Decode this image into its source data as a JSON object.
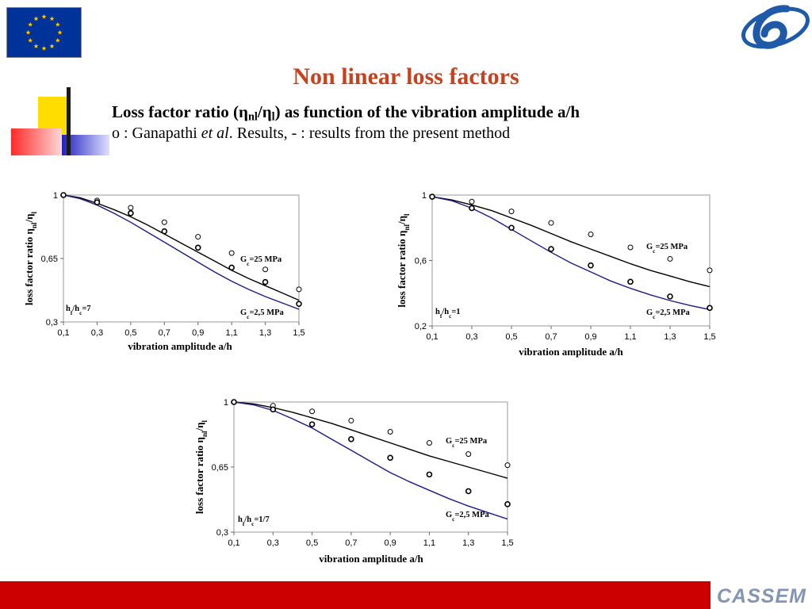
{
  "header": {
    "title": "Non linear loss factors",
    "subtitle": {
      "prefix": "Loss factor ratio (",
      "eta1": "η",
      "sub1": "nl",
      "slash": "/",
      "eta2": "η",
      "sub2": "l",
      "suffix": ") as function of the vibration amplitude a/h"
    },
    "caption": {
      "text1": "o : Ganapathi ",
      "italic": "et al",
      "text2": ". Results, - : results from the present method"
    }
  },
  "footer": {
    "logo_text": "CASSEM"
  },
  "colors": {
    "title": "#c8401c",
    "line_25": "#000000",
    "line_2_5": "#1a1a8c",
    "footer_bar": "#cc0000"
  },
  "chart_data": [
    {
      "type": "line",
      "xlabel": "vibration amplitude a/h",
      "ylabel": {
        "prefix": "loss factor ratio ",
        "eta1": "η",
        "sub1": "nl",
        "slash": "/",
        "eta2": "η",
        "sub2": "l"
      },
      "x_ticks": [
        "0,1",
        "0,3",
        "0,5",
        "0,7",
        "0,9",
        "1,1",
        "1,3",
        "1,5"
      ],
      "y_ticks": [
        "0,3",
        "0,65",
        "1"
      ],
      "xlim": [
        0.1,
        1.5
      ],
      "ylim": [
        0.3,
        1.0
      ],
      "annotation": {
        "h": "h",
        "f": "f",
        "slash": "/h",
        "c": "c",
        "ratio": "=7"
      },
      "series": [
        {
          "name": {
            "g": "G",
            "c": "c",
            "val": "=25 MPa"
          },
          "line": {
            "x": [
              0.1,
              0.2,
              0.3,
              0.4,
              0.5,
              0.6,
              0.7,
              0.8,
              0.9,
              1.0,
              1.1,
              1.2,
              1.3,
              1.4,
              1.5
            ],
            "y": [
              1.0,
              0.985,
              0.955,
              0.92,
              0.88,
              0.835,
              0.785,
              0.735,
              0.685,
              0.635,
              0.585,
              0.54,
              0.5,
              0.46,
              0.42
            ]
          },
          "points": {
            "x": [
              0.1,
              0.3,
              0.5,
              0.7,
              0.9,
              1.1,
              1.3,
              1.5
            ],
            "y": [
              1.0,
              0.97,
              0.93,
              0.85,
              0.77,
              0.68,
              0.59,
              0.48
            ]
          }
        },
        {
          "name": {
            "g": "G",
            "c": "c",
            "val": "=2,5 MPa"
          },
          "line": {
            "x": [
              0.1,
              0.2,
              0.3,
              0.4,
              0.5,
              0.6,
              0.7,
              0.8,
              0.9,
              1.0,
              1.1,
              1.2,
              1.3,
              1.4,
              1.5
            ],
            "y": [
              1.0,
              0.98,
              0.945,
              0.9,
              0.85,
              0.795,
              0.74,
              0.685,
              0.63,
              0.575,
              0.525,
              0.48,
              0.44,
              0.405,
              0.37
            ]
          },
          "points": {
            "x": [
              0.1,
              0.3,
              0.5,
              0.7,
              0.9,
              1.1,
              1.3,
              1.5
            ],
            "y": [
              1.0,
              0.96,
              0.9,
              0.8,
              0.71,
              0.6,
              0.52,
              0.4
            ]
          }
        }
      ]
    },
    {
      "type": "line",
      "xlabel": "vibration amplitude a/h",
      "ylabel": {
        "prefix": "loss factor ratio ",
        "eta1": "η",
        "sub1": "nl",
        "slash": "/",
        "eta2": "η",
        "sub2": "l"
      },
      "x_ticks": [
        "0,1",
        "0,3",
        "0,5",
        "0,7",
        "0,9",
        "1,1",
        "1,3",
        "1,5"
      ],
      "y_ticks": [
        "0,2",
        "0,6",
        "1"
      ],
      "xlim": [
        0.1,
        1.5
      ],
      "ylim": [
        0.2,
        1.0
      ],
      "annotation": {
        "h": "h",
        "f": "f",
        "slash": "/h",
        "c": "c",
        "ratio": "=1"
      },
      "series": [
        {
          "name": {
            "g": "G",
            "c": "c",
            "val": "=25 MPa"
          },
          "line": {
            "x": [
              0.1,
              0.2,
              0.3,
              0.4,
              0.5,
              0.6,
              0.7,
              0.8,
              0.9,
              1.0,
              1.1,
              1.2,
              1.3,
              1.4,
              1.5
            ],
            "y": [
              0.99,
              0.97,
              0.94,
              0.905,
              0.86,
              0.815,
              0.765,
              0.715,
              0.67,
              0.625,
              0.58,
              0.54,
              0.505,
              0.47,
              0.44
            ]
          },
          "points": {
            "x": [
              0.1,
              0.3,
              0.5,
              0.7,
              0.9,
              1.1,
              1.3,
              1.5
            ],
            "y": [
              0.99,
              0.96,
              0.9,
              0.83,
              0.76,
              0.68,
              0.61,
              0.54
            ]
          }
        },
        {
          "name": {
            "g": "G",
            "c": "c",
            "val": "=2,5 MPa"
          },
          "line": {
            "x": [
              0.1,
              0.2,
              0.3,
              0.4,
              0.5,
              0.6,
              0.7,
              0.8,
              0.9,
              1.0,
              1.1,
              1.2,
              1.3,
              1.4,
              1.5
            ],
            "y": [
              0.99,
              0.965,
              0.92,
              0.86,
              0.79,
              0.72,
              0.65,
              0.585,
              0.53,
              0.475,
              0.43,
              0.39,
              0.355,
              0.325,
              0.3
            ]
          },
          "points": {
            "x": [
              0.1,
              0.3,
              0.5,
              0.7,
              0.9,
              1.1,
              1.3,
              1.5
            ],
            "y": [
              0.99,
              0.92,
              0.8,
              0.67,
              0.57,
              0.47,
              0.38,
              0.31
            ]
          }
        }
      ]
    },
    {
      "type": "line",
      "xlabel": "vibration amplitude a/h",
      "ylabel": {
        "prefix": "loss factor ratio ",
        "eta1": "η",
        "sub1": "nl",
        "slash": "/",
        "eta2": "η",
        "sub2": "l"
      },
      "x_ticks": [
        "0,1",
        "0,3",
        "0,5",
        "0,7",
        "0,9",
        "1,1",
        "1,3",
        "1,5"
      ],
      "y_ticks": [
        "0,3",
        "0,65",
        "1"
      ],
      "xlim": [
        0.1,
        1.5
      ],
      "ylim": [
        0.3,
        1.0
      ],
      "annotation": {
        "h": "h",
        "f": "f",
        "slash": "/h",
        "c": "c",
        "ratio": "=1/7"
      },
      "series": [
        {
          "name": {
            "g": "G",
            "c": "c",
            "val": "=25 MPa"
          },
          "line": {
            "x": [
              0.1,
              0.2,
              0.3,
              0.4,
              0.5,
              0.6,
              0.7,
              0.8,
              0.9,
              1.0,
              1.1,
              1.2,
              1.3,
              1.4,
              1.5
            ],
            "y": [
              1.0,
              0.99,
              0.97,
              0.945,
              0.915,
              0.885,
              0.85,
              0.815,
              0.78,
              0.745,
              0.71,
              0.68,
              0.65,
              0.62,
              0.59
            ]
          },
          "points": {
            "x": [
              0.1,
              0.3,
              0.5,
              0.7,
              0.9,
              1.1,
              1.3,
              1.5
            ],
            "y": [
              1.0,
              0.98,
              0.95,
              0.9,
              0.84,
              0.78,
              0.72,
              0.66
            ]
          }
        },
        {
          "name": {
            "g": "G",
            "c": "c",
            "val": "=2,5 MPa"
          },
          "line": {
            "x": [
              0.1,
              0.2,
              0.3,
              0.4,
              0.5,
              0.6,
              0.7,
              0.8,
              0.9,
              1.0,
              1.1,
              1.2,
              1.3,
              1.4,
              1.5
            ],
            "y": [
              1.0,
              0.985,
              0.955,
              0.91,
              0.86,
              0.8,
              0.74,
              0.68,
              0.62,
              0.57,
              0.525,
              0.48,
              0.44,
              0.405,
              0.37
            ]
          },
          "points": {
            "x": [
              0.1,
              0.3,
              0.5,
              0.7,
              0.9,
              1.1,
              1.3,
              1.5
            ],
            "y": [
              1.0,
              0.96,
              0.88,
              0.8,
              0.7,
              0.61,
              0.52,
              0.45
            ]
          }
        }
      ]
    }
  ]
}
